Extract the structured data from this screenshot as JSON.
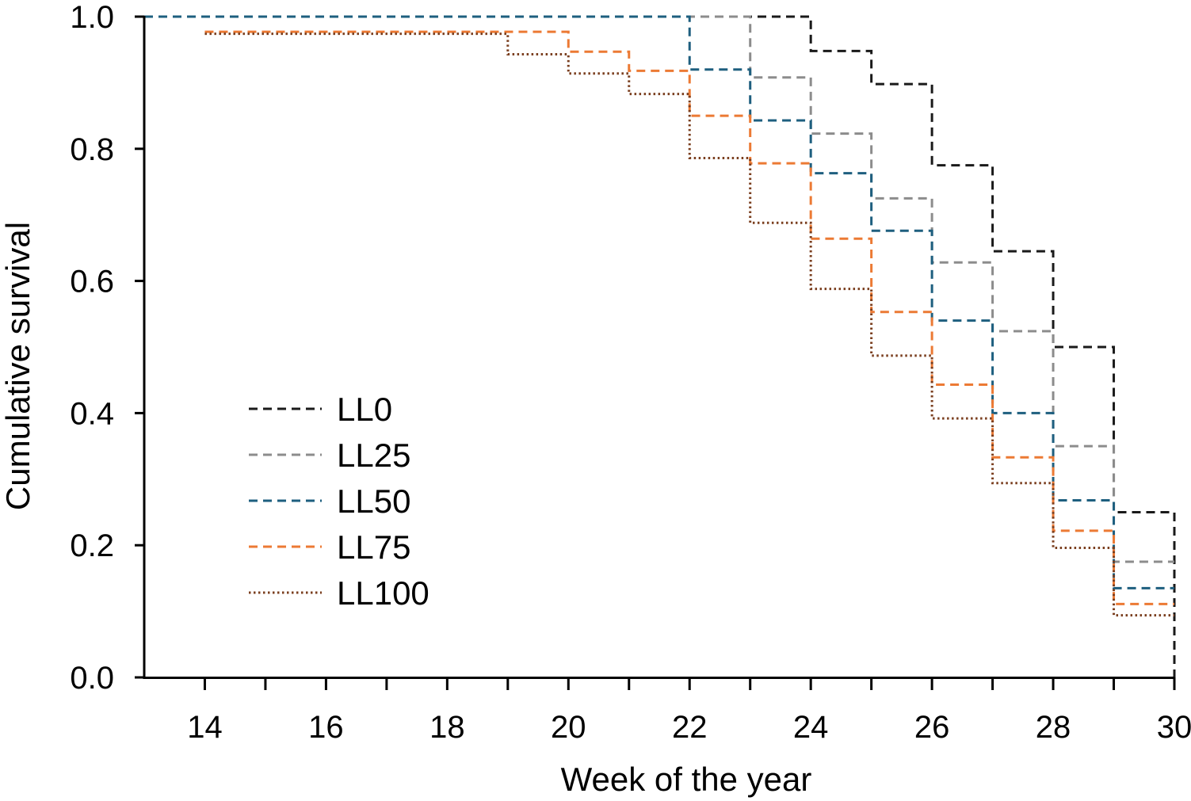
{
  "chart_data": {
    "type": "line",
    "step": "post",
    "title": "",
    "xlabel": "Week of the year",
    "ylabel": "Cumulative survival",
    "xlim": [
      13,
      30
    ],
    "ylim": [
      0,
      1
    ],
    "xticks_major": [
      14,
      16,
      18,
      20,
      22,
      24,
      26,
      28,
      30
    ],
    "xtick_labels": [
      "14",
      "16",
      "18",
      "20",
      "22",
      "24",
      "26",
      "28",
      "30"
    ],
    "xticks_minor": [
      15,
      17,
      19,
      21,
      23,
      25,
      27,
      29
    ],
    "yticks": [
      0.0,
      0.2,
      0.4,
      0.6,
      0.8,
      1.0
    ],
    "ytick_labels": [
      "0.0",
      "0.2",
      "0.4",
      "0.6",
      "0.8",
      "1.0"
    ],
    "legend_position": "lower-left",
    "series": [
      {
        "name": "LL0",
        "color": "#1a1a1a",
        "style": "dashed",
        "x": [
          13,
          24,
          25,
          26,
          27,
          28,
          29,
          30
        ],
        "y": [
          1.0,
          0.948,
          0.898,
          0.775,
          0.645,
          0.5,
          0.25,
          0.0
        ]
      },
      {
        "name": "LL25",
        "color": "#8c8c8c",
        "style": "dashed",
        "x": [
          13,
          23,
          24,
          25,
          26,
          27,
          28,
          29,
          30
        ],
        "y": [
          1.0,
          0.908,
          0.823,
          0.725,
          0.628,
          0.524,
          0.35,
          0.175,
          0.175
        ]
      },
      {
        "name": "LL50",
        "color": "#1e5f7f",
        "style": "dashed",
        "x": [
          13,
          22,
          23,
          24,
          25,
          26,
          27,
          28,
          29,
          30
        ],
        "y": [
          1.0,
          0.92,
          0.843,
          0.763,
          0.676,
          0.54,
          0.4,
          0.268,
          0.135,
          0.135
        ]
      },
      {
        "name": "LL75",
        "color": "#ec7a34",
        "style": "dashed",
        "x": [
          14,
          20,
          21,
          22,
          23,
          24,
          25,
          26,
          27,
          28,
          29,
          30
        ],
        "y": [
          0.977,
          0.947,
          0.918,
          0.85,
          0.778,
          0.664,
          0.553,
          0.443,
          0.333,
          0.222,
          0.111,
          0.111
        ]
      },
      {
        "name": "LL100",
        "color": "#7a3e1e",
        "style": "dotted",
        "x": [
          14,
          19,
          20,
          21,
          22,
          23,
          24,
          25,
          26,
          27,
          28,
          29,
          30
        ],
        "y": [
          0.974,
          0.943,
          0.914,
          0.883,
          0.786,
          0.688,
          0.588,
          0.487,
          0.392,
          0.294,
          0.196,
          0.094,
          0.094
        ]
      }
    ]
  }
}
